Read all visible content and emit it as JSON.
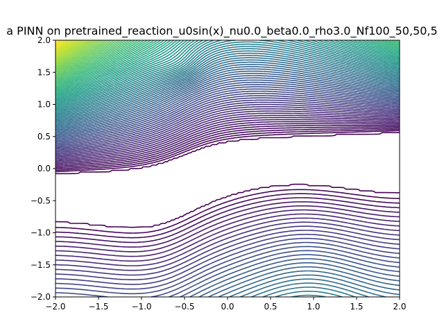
{
  "chart_data": {
    "type": "contour",
    "title": "a PINN on pretrained_reaction_u0sin(x)_nu0.0_beta0.0_rho3.0_Nf100_50,50,5",
    "xlabel": "",
    "ylabel": "",
    "xlim": [
      -2.0,
      2.0
    ],
    "ylim": [
      -2.0,
      2.0
    ],
    "x_ticks": [
      -2.0,
      -1.5,
      -1.0,
      -0.5,
      0.0,
      0.5,
      1.0,
      1.5,
      2.0
    ],
    "x_tick_labels": [
      "−2.0",
      "−1.5",
      "−1.0",
      "−0.5",
      "0.0",
      "0.5",
      "1.0",
      "1.5",
      "2.0"
    ],
    "y_ticks": [
      -2.0,
      -1.5,
      -1.0,
      -0.5,
      0.0,
      0.5,
      1.0,
      1.5,
      2.0
    ],
    "y_tick_labels": [
      "−2.0",
      "−1.5",
      "−1.0",
      "−0.5",
      "0.0",
      "0.5",
      "1.0",
      "1.5",
      "2.0"
    ],
    "grid": false,
    "colormap": "viridis",
    "upper_level_count": 100,
    "lower_level_count": 28,
    "colors": {
      "low": "#440154",
      "mid": "#21918c",
      "high": "#fde725"
    }
  }
}
